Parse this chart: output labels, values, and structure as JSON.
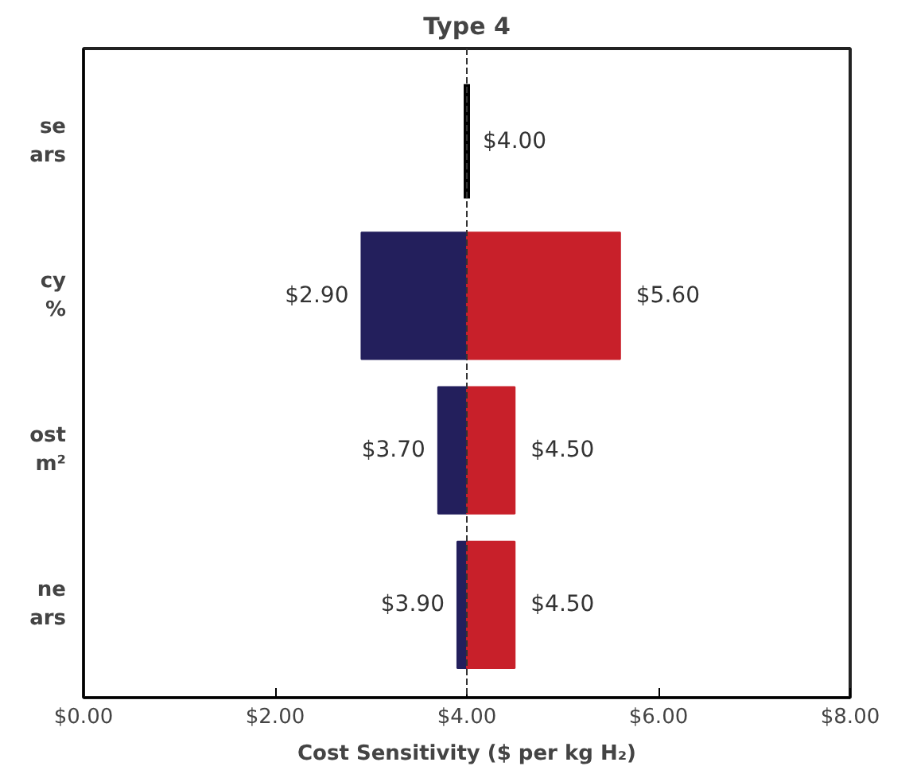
{
  "chart_data": {
    "type": "bar",
    "orientation": "horizontal",
    "title": "Type 4",
    "xlabel": "Cost Sensitivity ($ per kg H₂)",
    "categories": [
      "se\nars",
      "cy\n%",
      "ost\nm²",
      "ne\nars"
    ],
    "series": [
      {
        "color": "#231f5c",
        "base": [
          null,
          4.0,
          4.0,
          4.0
        ],
        "values": [
          null,
          -1.1,
          -0.3,
          -0.1
        ],
        "value_labels": [
          null,
          "$2.90",
          "$3.70",
          "$3.90"
        ]
      },
      {
        "color": "#c8202a",
        "base": [
          null,
          4.0,
          4.0,
          4.0
        ],
        "values": [
          null,
          1.6,
          0.5,
          0.5
        ],
        "value_labels": [
          null,
          "$5.60",
          "$4.50",
          "$4.50"
        ]
      },
      {
        "color": "#000000",
        "base": [
          4.0,
          null,
          null,
          null
        ],
        "values": [
          0,
          null,
          null,
          null
        ],
        "value_labels": [
          "$4.00",
          null,
          null,
          null
        ]
      }
    ],
    "xlim": [
      0,
      8
    ],
    "xticks": [
      {
        "value": 0,
        "label": "$0.00"
      },
      {
        "value": 2,
        "label": "$2.00"
      },
      {
        "value": 4,
        "label": "$4.00"
      },
      {
        "value": 6,
        "label": "$6.00"
      },
      {
        "value": 8,
        "label": "$8.00"
      }
    ],
    "ref_lines": [
      {
        "axis": "x",
        "value": 4.0,
        "color": "#333333",
        "line_style": "dashed"
      }
    ],
    "grid": false
  }
}
